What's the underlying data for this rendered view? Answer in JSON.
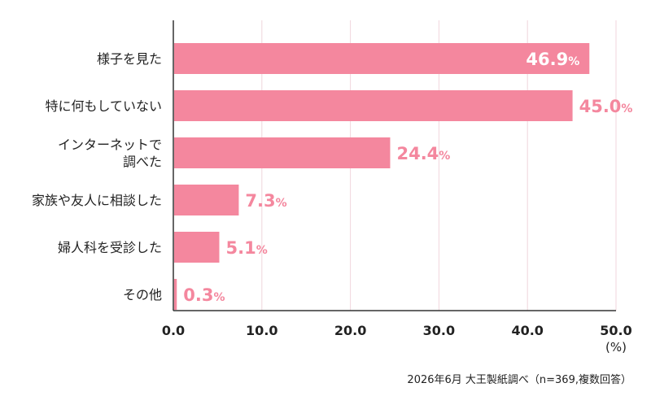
{
  "chart_data": {
    "type": "bar",
    "orientation": "horizontal",
    "categories": [
      "様子を見た",
      "特に何もしていない",
      "インターネットで\n調べた",
      "家族や友人に相談した",
      "婦人科を受診した",
      "その他"
    ],
    "values": [
      46.9,
      45.0,
      24.4,
      7.3,
      5.1,
      0.3
    ],
    "value_labels": [
      "46.9",
      "45.0",
      "24.4",
      "7.3",
      "5.1",
      "0.3"
    ],
    "value_suffix": "%",
    "xlim": [
      0,
      50
    ],
    "xticks": [
      "0.0",
      "10.0",
      "20.0",
      "30.0",
      "40.0",
      "50.0"
    ],
    "unit_label": "(%)",
    "grid": true,
    "legend": "none"
  },
  "colors": {
    "bar": "#f4879e",
    "label_inside": "#ffffff",
    "label_outside": "#f4879e",
    "grid": "#f0d6dc",
    "axis": "#333333"
  },
  "footer": {
    "source": "2026年6月 大王製紙調べ（n=369,複数回答）"
  }
}
